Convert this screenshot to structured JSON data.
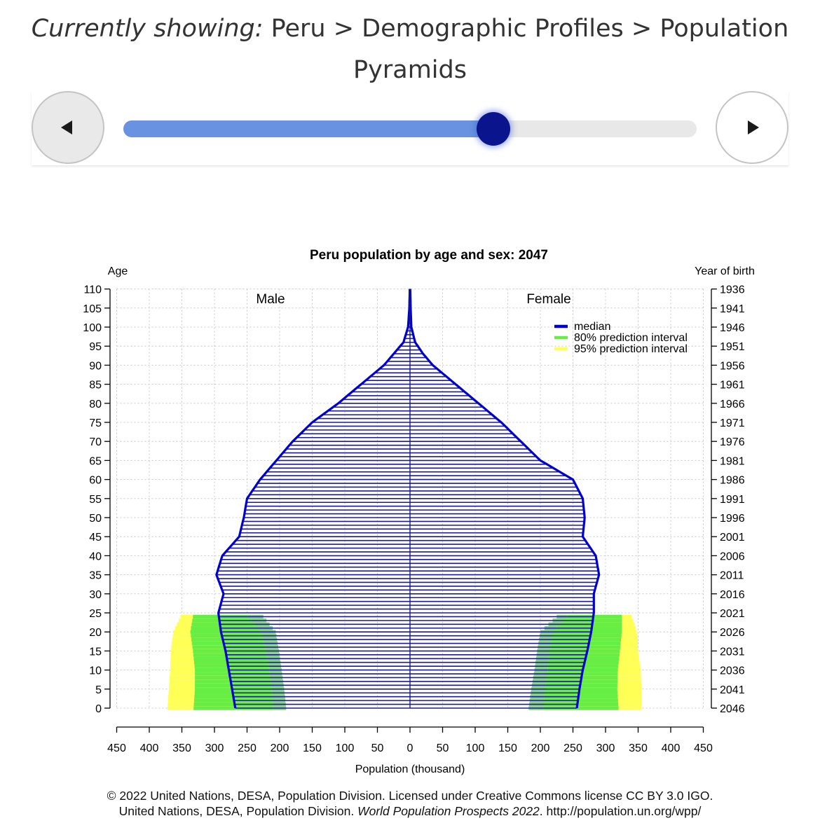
{
  "breadcrumb": {
    "prefix": "Currently showing:",
    "path": " Peru > Demographic Profiles > Population Pyramids"
  },
  "slider": {
    "progress": 0.645
  },
  "chart_data": {
    "type": "bar",
    "orientation": "horizontal",
    "style": "population pyramid",
    "title": "Peru population by age and sex: 2047",
    "ylabel_left": "Age",
    "ylabel_right": "Year of birth",
    "xlabel": "Population (thousand)",
    "side_labels": {
      "left": "Male",
      "right": "Female"
    },
    "xlim": [
      -450,
      450
    ],
    "ylim": [
      0,
      110
    ],
    "x_ticks": [
      -450,
      -400,
      -350,
      -300,
      -250,
      -200,
      -150,
      -100,
      -50,
      0,
      50,
      100,
      150,
      200,
      250,
      300,
      350,
      400,
      450
    ],
    "x_tick_labels": [
      "450",
      "400",
      "350",
      "300",
      "250",
      "200",
      "150",
      "100",
      "50",
      "0",
      "50",
      "100",
      "150",
      "200",
      "250",
      "300",
      "350",
      "400",
      "450"
    ],
    "age_ticks": [
      0,
      5,
      10,
      15,
      20,
      25,
      30,
      35,
      40,
      45,
      50,
      55,
      60,
      65,
      70,
      75,
      80,
      85,
      90,
      95,
      100,
      105,
      110
    ],
    "age_tick_labels": [
      "0",
      "5",
      "10",
      "15",
      "20",
      "25",
      "30",
      "35",
      "40",
      "45",
      "50",
      "55",
      "60",
      "65",
      "70",
      "75",
      "80",
      "85",
      "90",
      "95",
      "100",
      "105",
      "110"
    ],
    "birth_year_labels": [
      "2046",
      "2041",
      "2036",
      "2031",
      "2026",
      "2021",
      "2016",
      "2011",
      "2006",
      "2001",
      "1996",
      "1991",
      "1986",
      "1981",
      "1976",
      "1971",
      "1966",
      "1961",
      "1956",
      "1951",
      "1946",
      "1941",
      "1936"
    ],
    "grid": true,
    "legend": {
      "position": "upper right",
      "entries": [
        {
          "label": "median",
          "color": "#0000d0"
        },
        {
          "label": "80% prediction interval",
          "color": "#66ee44"
        },
        {
          "label": "95% prediction interval",
          "color": "#ffff55"
        }
      ]
    },
    "colors": {
      "bars": "#1a1aa0",
      "median": "#0000d0",
      "pi80": "#66ee44",
      "pi95": "#ffff55",
      "overlap": "#77cc88"
    },
    "series": [
      {
        "name": "Male",
        "ages": [
          0,
          5,
          10,
          15,
          20,
          25,
          30,
          35,
          40,
          45,
          50,
          55,
          60,
          65,
          70,
          75,
          80,
          85,
          90,
          93,
          96,
          100,
          105,
          110
        ],
        "median": [
          268,
          273,
          278,
          283,
          290,
          294,
          286,
          297,
          288,
          262,
          255,
          250,
          230,
          205,
          180,
          150,
          110,
          75,
          40,
          25,
          10,
          3,
          1,
          0.3
        ]
      },
      {
        "name": "Female",
        "ages": [
          0,
          5,
          10,
          15,
          20,
          25,
          30,
          35,
          40,
          45,
          50,
          55,
          60,
          65,
          70,
          75,
          80,
          85,
          90,
          93,
          96,
          100,
          105,
          110
        ],
        "median": [
          256,
          260,
          265,
          272,
          278,
          282,
          282,
          290,
          285,
          265,
          268,
          265,
          250,
          200,
          170,
          140,
          105,
          70,
          35,
          20,
          8,
          2,
          1,
          0.3
        ]
      }
    ],
    "prediction_intervals": {
      "male": {
        "ages": [
          0,
          5,
          10,
          15,
          20,
          24
        ],
        "p80": [
          [
            210,
            332
          ],
          [
            212,
            330
          ],
          [
            216,
            330
          ],
          [
            221,
            333
          ],
          [
            228,
            337
          ],
          [
            249,
            333
          ]
        ],
        "p95": [
          [
            190,
            372
          ],
          [
            193,
            370
          ],
          [
            197,
            368
          ],
          [
            201,
            367
          ],
          [
            206,
            363
          ],
          [
            225,
            352
          ]
        ]
      },
      "female": {
        "ages": [
          0,
          5,
          10,
          15,
          20,
          24
        ],
        "p80": [
          [
            205,
            320
          ],
          [
            207,
            318
          ],
          [
            211,
            319
          ],
          [
            214,
            322
          ],
          [
            220,
            325
          ],
          [
            240,
            325
          ]
        ],
        "p95": [
          [
            182,
            355
          ],
          [
            186,
            355
          ],
          [
            191,
            354
          ],
          [
            195,
            350
          ],
          [
            200,
            348
          ],
          [
            225,
            340
          ]
        ]
      }
    }
  },
  "credits": {
    "line1": "© 2022 United Nations, DESA, Population Division. Licensed under Creative Commons license CC BY 3.0 IGO.",
    "line2_prefix": "United Nations, DESA, Population Division. ",
    "line2_italic": "World Population Prospects 2022",
    "line2_suffix": ". http://population.un.org/wpp/"
  }
}
